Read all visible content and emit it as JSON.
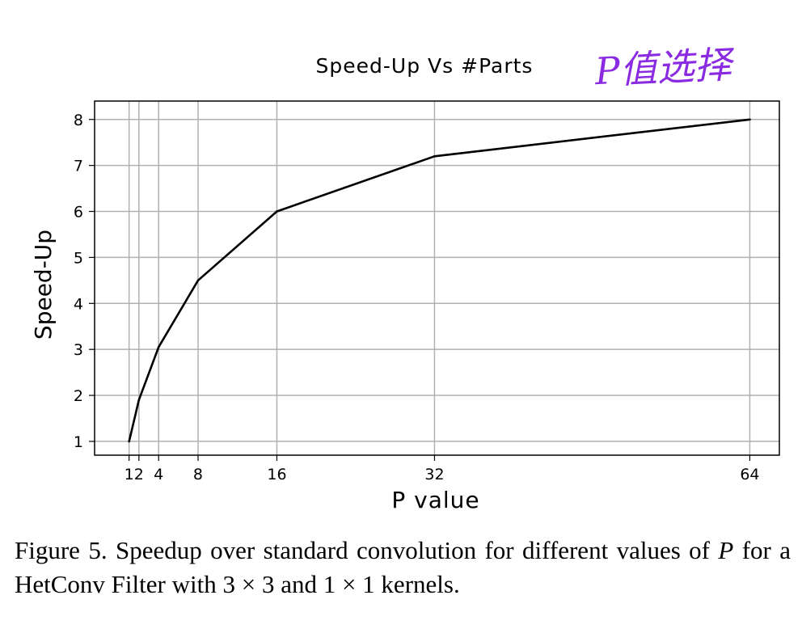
{
  "colors": {
    "line": "#000000",
    "grid": "#b0b0b0",
    "annotation": "#8a2be2",
    "text": "#000000"
  },
  "chart_data": {
    "type": "line",
    "title": "Speed-Up Vs #Parts",
    "xlabel": "P value",
    "ylabel": "Speed-Up",
    "x": [
      1,
      2,
      4,
      8,
      16,
      32,
      64
    ],
    "series": [
      {
        "values": [
          1.0,
          1.9,
          3.05,
          4.5,
          6.0,
          7.2,
          8.0
        ]
      }
    ],
    "xlim": [
      -2.5,
      67
    ],
    "ylim": [
      0.7,
      8.4
    ],
    "xticks": [
      1,
      2,
      4,
      8,
      16,
      32,
      64
    ],
    "xtick_labels": [
      "1",
      "2",
      "4",
      "8",
      "16",
      "32",
      "64"
    ],
    "yticks": [
      1,
      2,
      3,
      4,
      5,
      6,
      7,
      8
    ],
    "ytick_labels": [
      "1",
      "2",
      "3",
      "4",
      "5",
      "6",
      "7",
      "8"
    ],
    "grid": true,
    "legend": "none",
    "annotation": "P值选择"
  },
  "caption": {
    "prefix": "Figure 5. Speedup over standard convolution for different values of ",
    "var": "P",
    "suffix": " for a HetConv Filter with 3 × 3 and 1 × 1 kernels."
  }
}
